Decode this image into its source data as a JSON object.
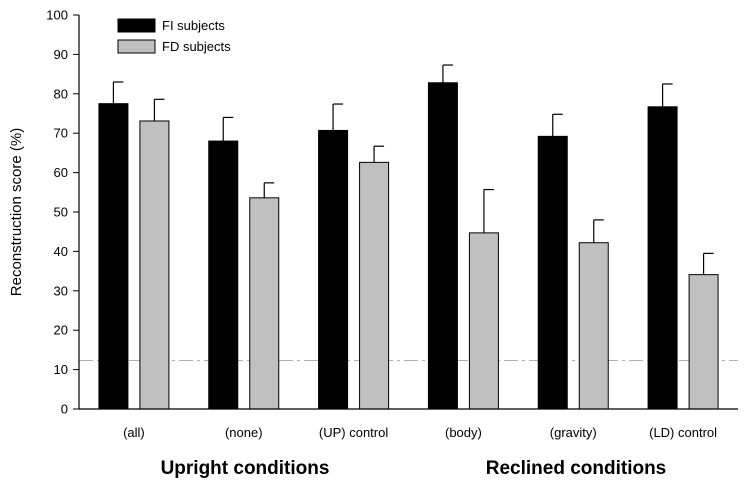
{
  "chart_data": {
    "type": "bar",
    "ylabel": "Reconstruction score (%)",
    "ylim": [
      0,
      100
    ],
    "y_ticks": [
      "0",
      "10",
      "20",
      "30",
      "40",
      "50",
      "60",
      "70",
      "80",
      "90",
      "100"
    ],
    "categories": [
      "(all)",
      "(none)",
      "(UP) control",
      "(body)",
      "(gravity)",
      "(LD) control"
    ],
    "group_labels": [
      "Upright conditions",
      "Reclined conditions"
    ],
    "series": [
      {
        "name": "FI subjects",
        "color": "#000000",
        "values": [
          77.5,
          68,
          70.7,
          82.8,
          69.2,
          76.7
        ],
        "errors": [
          5.5,
          6,
          6.7,
          4.5,
          5.6,
          5.8
        ]
      },
      {
        "name": "FD subjects",
        "color": "#c0c0c0",
        "values": [
          73.1,
          53.6,
          62.6,
          44.7,
          42.2,
          34.1
        ],
        "errors": [
          5.5,
          3.8,
          4.1,
          11,
          5.8,
          5.4
        ]
      }
    ],
    "reference_line": {
      "y": 12.3,
      "style": "dashed",
      "color": "#b0b0b0"
    },
    "legend_position": "top-left",
    "grid": false
  }
}
